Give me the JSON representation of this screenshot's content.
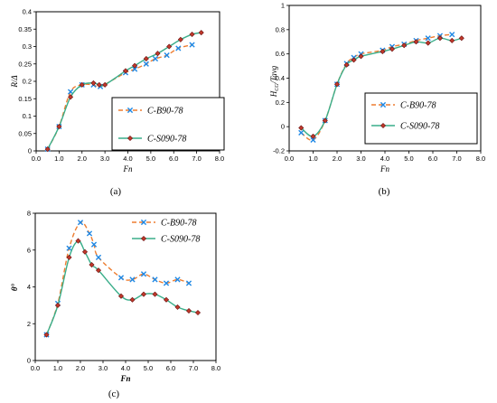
{
  "colors": {
    "series_b90": "#ED7D31",
    "series_b90_marker": "#1E88E5",
    "series_s090": "#3AAE8A",
    "series_s090_marker": "#C0392B"
  },
  "chart_data": [
    {
      "type": "line",
      "panel_label": "(a)",
      "xlabel": "Fn",
      "ylabel": "R/Δ",
      "xlim": [
        0,
        8
      ],
      "ylim": [
        0,
        0.4
      ],
      "xticks": [
        "0.0",
        "1.0",
        "2.0",
        "3.0",
        "4.0",
        "5.0",
        "6.0",
        "7.0",
        "8.0"
      ],
      "yticks": [
        "0",
        "0.05",
        "0.1",
        "0.15",
        "0.2",
        "0.25",
        "0.3",
        "0.35",
        "0.4"
      ],
      "grid": false,
      "legend_position": "bottom-right",
      "series": [
        {
          "name": "C-B90-78",
          "style": "dashed-x",
          "x": [
            0.5,
            1.0,
            1.5,
            2.0,
            2.5,
            2.8,
            3.9,
            4.3,
            4.8,
            5.2,
            5.7,
            6.2,
            6.8
          ],
          "y": [
            0.005,
            0.07,
            0.17,
            0.19,
            0.19,
            0.185,
            0.225,
            0.235,
            0.25,
            0.265,
            0.275,
            0.295,
            0.305
          ]
        },
        {
          "name": "C-S090-78",
          "style": "solid-diamond",
          "x": [
            0.5,
            1.0,
            1.5,
            2.0,
            2.5,
            2.75,
            3.0,
            3.9,
            4.3,
            4.8,
            5.3,
            5.8,
            6.3,
            6.8,
            7.2
          ],
          "y": [
            0.005,
            0.07,
            0.155,
            0.19,
            0.195,
            0.19,
            0.19,
            0.23,
            0.245,
            0.265,
            0.28,
            0.3,
            0.32,
            0.335,
            0.34
          ]
        }
      ]
    },
    {
      "type": "line",
      "panel_label": "(b)",
      "xlabel": "Fn",
      "ylabel": "HCG/Tavg",
      "ylabel_main": "H",
      "ylabel_sub": "CG",
      "ylabel_rest": "/Tavg",
      "xlim": [
        0,
        8
      ],
      "ylim": [
        -0.2,
        1
      ],
      "xticks": [
        "0.0",
        "1.0",
        "2.0",
        "3.0",
        "4.0",
        "5.0",
        "6.0",
        "7.0",
        "8.0"
      ],
      "yticks": [
        "-0.2",
        "0",
        "0.2",
        "0.4",
        "0.6",
        "0.8",
        "1"
      ],
      "grid": false,
      "legend_position": "bottom-right",
      "series": [
        {
          "name": "C-B90-78",
          "style": "dashed-x",
          "x": [
            0.5,
            1.0,
            1.5,
            2.0,
            2.4,
            2.7,
            3.0,
            3.9,
            4.3,
            4.8,
            5.3,
            5.8,
            6.3,
            6.8
          ],
          "y": [
            -0.05,
            -0.11,
            0.05,
            0.35,
            0.52,
            0.57,
            0.6,
            0.63,
            0.66,
            0.68,
            0.71,
            0.73,
            0.75,
            0.76
          ]
        },
        {
          "name": "C-S090-78",
          "style": "solid-diamond",
          "x": [
            0.5,
            1.0,
            1.5,
            2.0,
            2.4,
            2.7,
            3.0,
            3.9,
            4.3,
            4.8,
            5.3,
            5.8,
            6.3,
            6.8,
            7.2
          ],
          "y": [
            -0.01,
            -0.08,
            0.05,
            0.35,
            0.51,
            0.55,
            0.58,
            0.62,
            0.64,
            0.67,
            0.7,
            0.69,
            0.73,
            0.71,
            0.73
          ]
        }
      ]
    },
    {
      "type": "line",
      "panel_label": "(c)",
      "xlabel": "Fn",
      "ylabel": "θ°",
      "xlim": [
        0,
        8
      ],
      "ylim": [
        0,
        8
      ],
      "xticks": [
        "0.0",
        "1.0",
        "2.0",
        "3.0",
        "4.0",
        "5.0",
        "6.0",
        "7.0",
        "8.0"
      ],
      "yticks": [
        "0",
        "2",
        "4",
        "6",
        "8"
      ],
      "grid": false,
      "legend_position": "top-right",
      "series": [
        {
          "name": "C-B90-78",
          "style": "dashed-x",
          "x": [
            0.5,
            1.0,
            1.5,
            2.0,
            2.4,
            2.6,
            2.8,
            3.8,
            4.3,
            4.8,
            5.3,
            5.8,
            6.3,
            6.8
          ],
          "y": [
            1.4,
            3.1,
            6.1,
            7.5,
            6.9,
            6.3,
            5.6,
            4.5,
            4.4,
            4.7,
            4.4,
            4.2,
            4.4,
            4.2
          ]
        },
        {
          "name": "C-S090-78",
          "style": "solid-diamond",
          "x": [
            0.5,
            1.0,
            1.5,
            1.9,
            2.2,
            2.5,
            2.8,
            3.8,
            4.3,
            4.8,
            5.3,
            5.8,
            6.3,
            6.8,
            7.2
          ],
          "y": [
            1.4,
            3.0,
            5.6,
            6.5,
            5.9,
            5.2,
            4.9,
            3.5,
            3.3,
            3.6,
            3.6,
            3.3,
            2.9,
            2.7,
            2.6
          ]
        }
      ]
    }
  ]
}
